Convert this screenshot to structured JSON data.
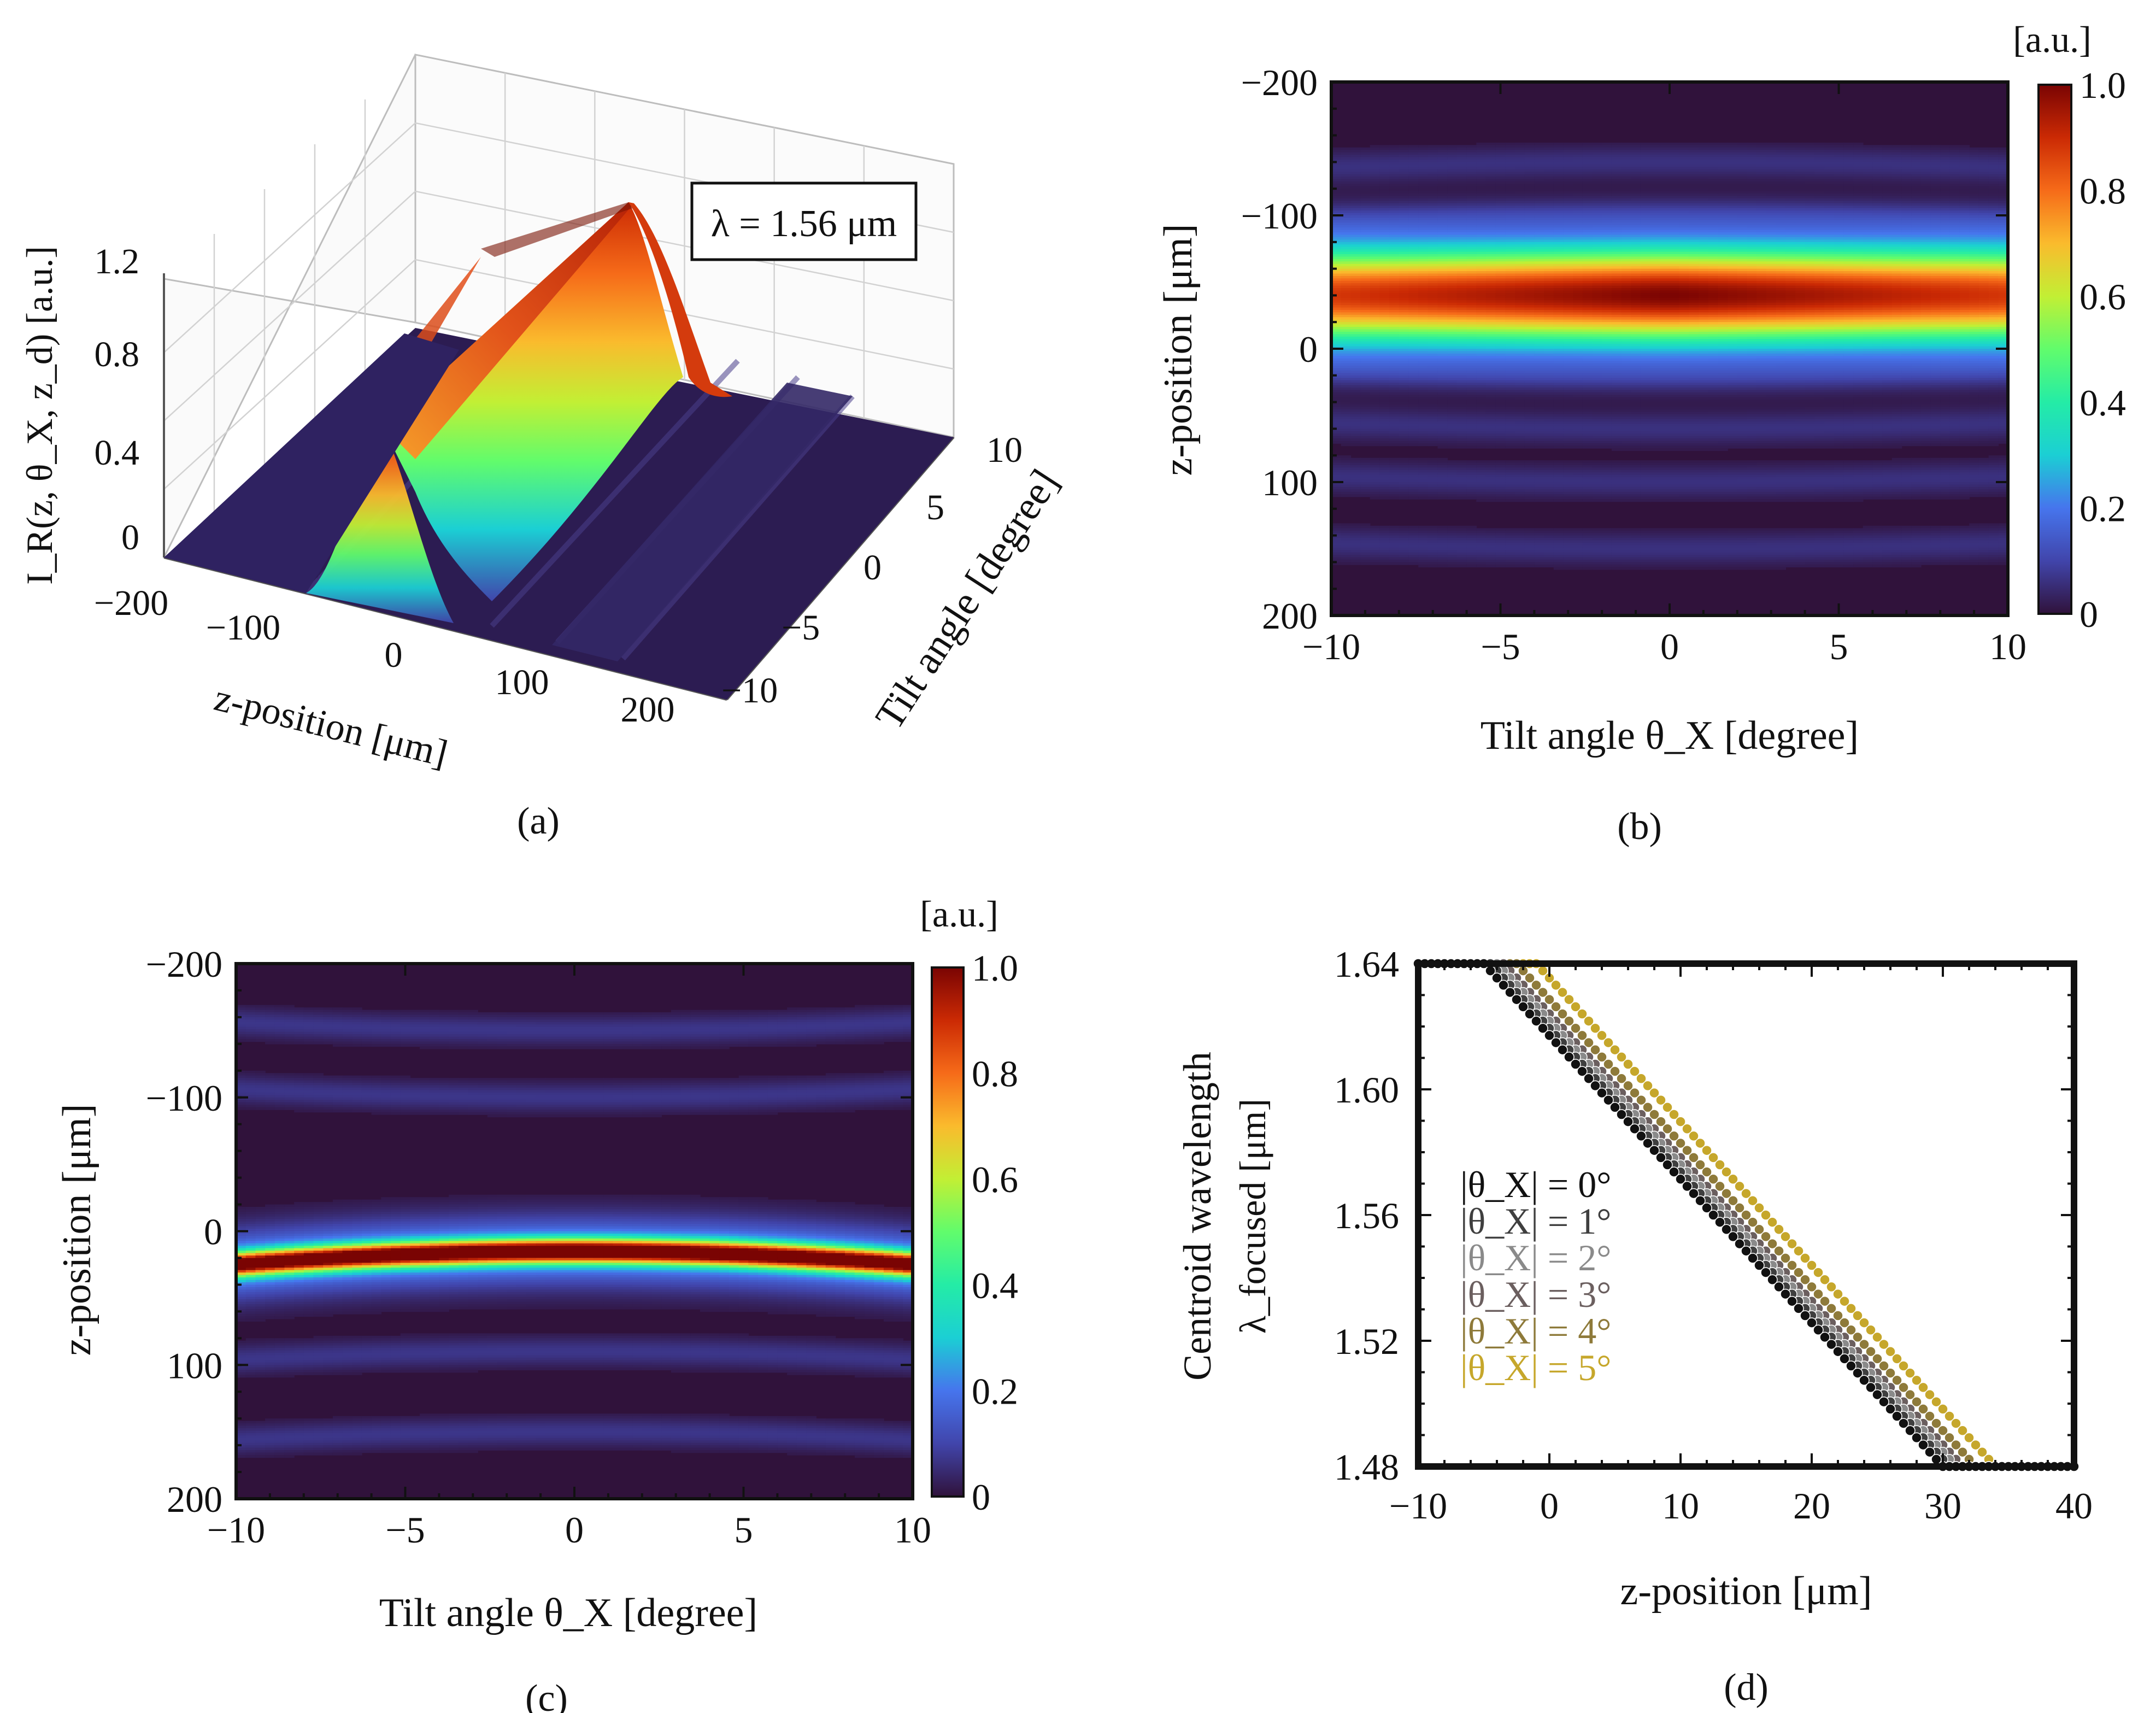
{
  "panels": {
    "a": {
      "caption": "(a)",
      "legend_box": "λ = 1.56 μm",
      "z_axis_label": "I_R(z, θ_X, z_d)  [a.u.]",
      "z_ticks": [
        "0",
        "0.4",
        "0.8",
        "1.2"
      ],
      "x_axis_label": "z-position  [μm]",
      "x_ticks": [
        "−200",
        "−100",
        "0",
        "100",
        "200"
      ],
      "y_axis_label": "Tilt angle [degree]",
      "y_ticks": [
        "−10",
        "−5",
        "0",
        "5",
        "10"
      ]
    },
    "b": {
      "caption": "(b)",
      "xlabel": "Tilt angle θ_X [degree]",
      "ylabel": "z-position  [μm]",
      "x_ticks": [
        "−10",
        "−5",
        "0",
        "5",
        "10"
      ],
      "y_ticks": [
        "−200",
        "−100",
        "0",
        "100",
        "200"
      ],
      "colorbar_unit": "[a.u.]",
      "colorbar_ticks": [
        "0",
        "0.2",
        "0.4",
        "0.6",
        "0.8",
        "1.0"
      ]
    },
    "c": {
      "caption": "(c)",
      "xlabel": "Tilt angle θ_X [degree]",
      "ylabel": "z-position  [μm]",
      "x_ticks": [
        "−10",
        "−5",
        "0",
        "5",
        "10"
      ],
      "y_ticks": [
        "−200",
        "−100",
        "0",
        "100",
        "200"
      ],
      "colorbar_unit": "[a.u.]",
      "colorbar_ticks": [
        "0",
        "0.2",
        "0.4",
        "0.6",
        "0.8",
        "1.0"
      ]
    },
    "d": {
      "caption": "(d)",
      "xlabel": "z-position  [μm]",
      "ylabel_line1": "Centroid wavelength",
      "ylabel_line2": "λ_focused [μm]",
      "x_ticks": [
        "−10",
        "0",
        "10",
        "20",
        "30",
        "40"
      ],
      "y_ticks": [
        "1.48",
        "1.52",
        "1.56",
        "1.60",
        "1.64"
      ]
    }
  },
  "chart_data": [
    {
      "panel": "a",
      "type": "heatmap",
      "title": "λ = 1.56 μm",
      "xlabel": "z-position [μm]",
      "ylabel": "Tilt angle [degree]",
      "zlabel": "I_R(z, θ_X, z_d) [a.u.]",
      "xlim": [
        -200,
        200
      ],
      "ylim": [
        -10,
        10
      ],
      "zlim": [
        0,
        1.2
      ],
      "peak_z_um": -40,
      "peak_value_at_0deg": 1.2,
      "peak_value_at_10deg": 0.95,
      "peak_value_at_minus10deg": 0.55,
      "note": "3D surface plot of reflected intensity"
    },
    {
      "panel": "b",
      "type": "heatmap",
      "xlabel": "Tilt angle θ_X [degree]",
      "ylabel": "z-position [μm]",
      "xlim": [
        -10,
        10
      ],
      "ylim": [
        -200,
        200
      ],
      "clim": [
        0,
        1.0
      ],
      "main_band_center_um": -40,
      "main_band_fwhm_um": 60,
      "peak_value": 1.0,
      "side_lobes_um": [
        -140,
        -100,
        20,
        60,
        100,
        150
      ]
    },
    {
      "panel": "c",
      "type": "heatmap",
      "xlabel": "Tilt angle θ_X [degree]",
      "ylabel": "z-position [μm]",
      "xlim": [
        -10,
        10
      ],
      "ylim": [
        -200,
        200
      ],
      "clim": [
        0,
        1.0
      ],
      "main_band_center_um_at_0deg": 15,
      "main_band_center_um_at_10deg": 25,
      "main_band_fwhm_um": 14,
      "peak_value": 1.0,
      "side_lobes_um": [
        -150,
        -100,
        90,
        150
      ]
    },
    {
      "panel": "d",
      "type": "line",
      "xlabel": "z-position [μm]",
      "ylabel": "Centroid wavelength λ_focused [μm]",
      "xlim": [
        -10,
        40
      ],
      "ylim": [
        1.48,
        1.64
      ],
      "series": [
        {
          "name": "|θ_X| = 0°",
          "color": "#111111",
          "x_start": -5.0,
          "x_end": 30.0,
          "y_high": 1.64,
          "y_low": 1.48
        },
        {
          "name": "|θ_X| = 1°",
          "color": "#3f3f3f",
          "x_start": -4.5,
          "x_end": 30.5,
          "y_high": 1.64,
          "y_low": 1.48
        },
        {
          "name": "|θ_X| = 2°",
          "color": "#8a8a8a",
          "x_start": -4.0,
          "x_end": 31.0,
          "y_high": 1.64,
          "y_low": 1.48
        },
        {
          "name": "|θ_X| = 3°",
          "color": "#6b5f5f",
          "x_start": -3.5,
          "x_end": 31.5,
          "y_high": 1.64,
          "y_low": 1.48
        },
        {
          "name": "|θ_X| = 4°",
          "color": "#8e7a3a",
          "x_start": -2.5,
          "x_end": 32.5,
          "y_high": 1.64,
          "y_low": 1.48
        },
        {
          "name": "|θ_X| = 5°",
          "color": "#c6a72b",
          "x_start": -1.0,
          "x_end": 34.0,
          "y_high": 1.64,
          "y_low": 1.48
        }
      ]
    }
  ]
}
